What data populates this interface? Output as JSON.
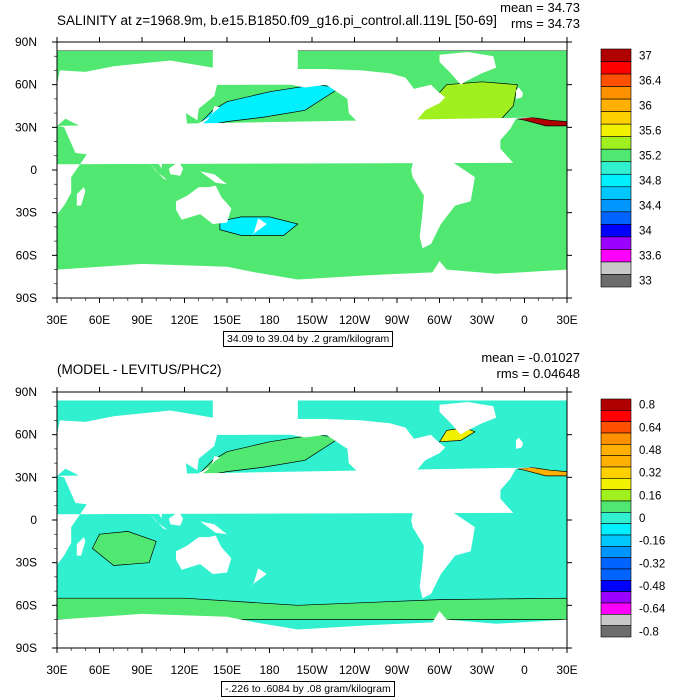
{
  "colors": {
    "land": "#ffffff",
    "seafloor_gap": "#ffffff",
    "palette": [
      "#6d6d6d",
      "#c8c8c8",
      "#ff00ff",
      "#9b00ff",
      "#0000ff",
      "#0064ff",
      "#0096ff",
      "#00c8ff",
      "#00f0ff",
      "#30f0d0",
      "#50e870",
      "#a0f020",
      "#f0f000",
      "#ffd000",
      "#ffb000",
      "#ff9000",
      "#ff5000",
      "#ff0000",
      "#b00000"
    ]
  },
  "chart_data": [
    {
      "type": "heatmap",
      "id": "top",
      "title": "SALINITY at z=1968.9m, b.e15.B1850.f09_g16.pi_control.all.119L [50-69]",
      "stats": {
        "mean_label": "mean = 34.73",
        "rms_label": "rms = 34.73"
      },
      "xticks": [
        "30E",
        "60E",
        "90E",
        "120E",
        "150E",
        "180",
        "150W",
        "120W",
        "90W",
        "60W",
        "30W",
        "0",
        "30E"
      ],
      "yticks": [
        "90N",
        "60N",
        "30N",
        "0",
        "30S",
        "60S",
        "90S"
      ],
      "contour_label": "34.09 to 39.04 by .2 gram/kilogram",
      "colorbar_labels": [
        "37",
        "36.4",
        "36",
        "35.6",
        "35.2",
        "34.8",
        "34.4",
        "34",
        "33.6",
        "33"
      ],
      "field": {
        "background_bin": 10,
        "patches": [
          {
            "region": "north-pacific",
            "bin": 8
          },
          {
            "region": "north-atlantic",
            "bin": 11
          },
          {
            "region": "mediterranean",
            "bin": 18
          },
          {
            "region": "south-pacific-gyre",
            "bin": 8
          },
          {
            "region": "arctic",
            "bin": 10
          }
        ]
      }
    },
    {
      "type": "heatmap",
      "id": "bottom",
      "title": "(MODEL - LEVITUS/PHC2)",
      "stats": {
        "mean_label": "mean = -0.01027",
        "rms_label": "rms = 0.04648"
      },
      "xticks": [
        "30E",
        "60E",
        "90E",
        "120E",
        "150E",
        "180",
        "150W",
        "120W",
        "90W",
        "60W",
        "30W",
        "0",
        "30E"
      ],
      "yticks": [
        "90N",
        "60N",
        "30N",
        "0",
        "30S",
        "60S",
        "90S"
      ],
      "contour_label": "-.226 to .6084 by .08 gram/kilogram",
      "colorbar_labels": [
        "0.8",
        "0.64",
        "0.48",
        "0.32",
        "0.16",
        "0",
        "-0.16",
        "-0.32",
        "-0.48",
        "-0.64",
        "-0.8"
      ],
      "field": {
        "background_bin": 9,
        "patches": [
          {
            "region": "southern-ocean",
            "bin": 10
          },
          {
            "region": "north-pacific",
            "bin": 10
          },
          {
            "region": "indian-ocean",
            "bin": 10
          },
          {
            "region": "labrador-sea",
            "bin": 12
          },
          {
            "region": "mediterranean",
            "bin": 14
          }
        ]
      }
    }
  ]
}
